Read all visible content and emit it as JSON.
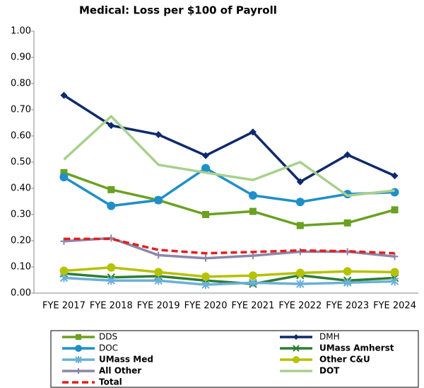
{
  "chart_data": {
    "type": "line",
    "title": "Medical: Loss per $100 of Payroll",
    "categories": [
      "FYE 2017",
      "FYE 2018",
      "FYE 2019",
      "FYE 2020",
      "FYE 2021",
      "FYE 2022",
      "FYE 2023",
      "FYE 2024"
    ],
    "ylim": [
      0,
      1
    ],
    "yticks": [
      {
        "value": 0,
        "label": "0.00"
      },
      {
        "value": 0.1,
        "label": "0.10"
      },
      {
        "value": 0.2,
        "label": "0.20"
      },
      {
        "value": 0.3,
        "label": "0.30"
      },
      {
        "value": 0.4,
        "label": "0.40"
      },
      {
        "value": 0.5,
        "label": "0.50"
      },
      {
        "value": 0.6,
        "label": "0.60"
      },
      {
        "value": 0.7,
        "label": "0.70"
      },
      {
        "value": 0.8,
        "label": "0.80"
      },
      {
        "value": 0.9,
        "label": "0.90"
      },
      {
        "value": 1,
        "label": "1.00"
      }
    ],
    "grid": false,
    "legend": "bottom",
    "series": [
      {
        "name": "DDS",
        "color": "#6aa121",
        "marker": "square",
        "values": [
          0.46,
          0.395,
          0.355,
          0.3,
          0.312,
          0.258,
          0.268,
          0.318
        ]
      },
      {
        "name": "DMH",
        "color": "#0f2a6b",
        "marker": "diamond",
        "values": [
          0.755,
          0.64,
          0.605,
          0.525,
          0.615,
          0.425,
          0.528,
          0.448
        ]
      },
      {
        "name": "DOC",
        "color": "#1f8fc8",
        "marker": "circle",
        "values": [
          0.443,
          0.333,
          0.355,
          0.477,
          0.373,
          0.348,
          0.378,
          0.385
        ]
      },
      {
        "name": "UMass Amherst",
        "color": "#2e7d32",
        "marker": "x",
        "values": [
          0.075,
          0.06,
          0.065,
          0.048,
          0.035,
          0.068,
          0.048,
          0.058
        ]
      },
      {
        "name": "UMass Med",
        "color": "#6ab0d8",
        "marker": "asterisk",
        "values": [
          0.058,
          0.048,
          0.048,
          0.032,
          0.04,
          0.035,
          0.04,
          0.045
        ]
      },
      {
        "name": "Other C&U",
        "color": "#b5c200",
        "marker": "circle",
        "values": [
          0.085,
          0.098,
          0.08,
          0.063,
          0.067,
          0.077,
          0.083,
          0.08
        ]
      },
      {
        "name": "All Other",
        "color": "#8c86a8",
        "marker": "plus",
        "values": [
          0.198,
          0.21,
          0.145,
          0.133,
          0.143,
          0.158,
          0.158,
          0.14
        ]
      },
      {
        "name": "DOT",
        "color": "#a8d08d",
        "marker": "none",
        "values": [
          0.51,
          0.675,
          0.49,
          0.46,
          0.432,
          0.5,
          0.372,
          0.392
        ]
      },
      {
        "name": "Total",
        "color": "#e02020",
        "marker": "none",
        "dash": true,
        "values": [
          0.207,
          0.207,
          0.165,
          0.152,
          0.157,
          0.163,
          0.16,
          0.152
        ]
      }
    ]
  }
}
